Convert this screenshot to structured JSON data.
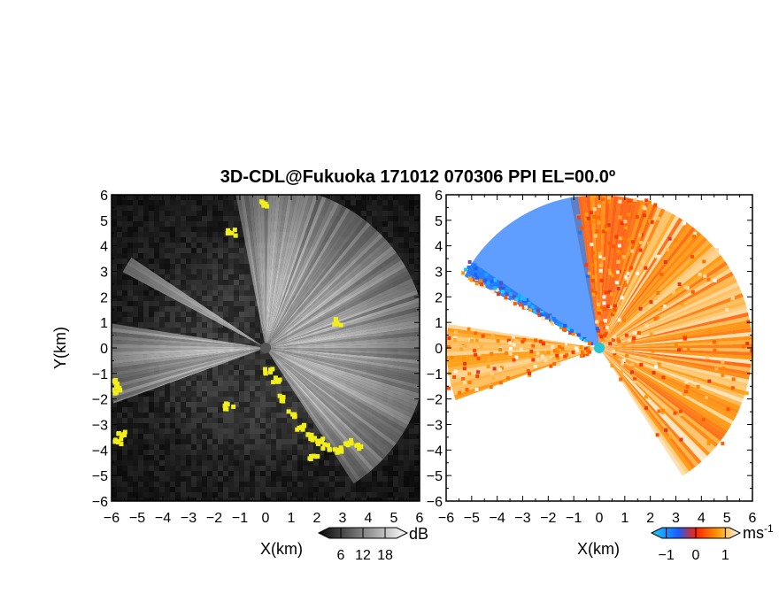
{
  "chart_data": {
    "type": "heatmap",
    "title": "3D-CDL@Fukuoka 171012 070306 PPI EL=00.0º",
    "panels": [
      {
        "id": "reflectivity",
        "xlabel": "X(km)",
        "ylabel": "Y(km)",
        "xlim": [
          -6,
          6
        ],
        "ylim": [
          -6,
          6
        ],
        "xticks": [
          "-6",
          "-5",
          "-4",
          "-3",
          "-2",
          "-1",
          "0",
          "1",
          "2",
          "3",
          "4",
          "5",
          "6"
        ],
        "yticks": [
          "-6",
          "-5",
          "-4",
          "-3",
          "-2",
          "-1",
          "0",
          "1",
          "2",
          "3",
          "4",
          "5",
          "6"
        ],
        "colorbar": {
          "label": "dB",
          "ticks": [
            "6",
            "12",
            "18"
          ],
          "range": [
            0,
            24
          ]
        },
        "colormap": [
          "#050505",
          "#ffffff"
        ],
        "mask_color": "#f2ee1a",
        "background": "#1a1a1a",
        "center_marker": {
          "x": 0,
          "y": 0,
          "color": "#555555"
        }
      },
      {
        "id": "doppler-velocity",
        "xlabel": "X(km)",
        "xlim": [
          -6,
          6
        ],
        "ylim": [
          -6,
          6
        ],
        "xticks": [
          "-6",
          "-5",
          "-4",
          "-3",
          "-2",
          "-1",
          "0",
          "1",
          "2",
          "3",
          "4",
          "5",
          "6"
        ],
        "yticks": [
          "-6",
          "-5",
          "-4",
          "-3",
          "-2",
          "-1",
          "0",
          "1",
          "2",
          "3",
          "4",
          "5",
          "6"
        ],
        "colorbar": {
          "label": "ms",
          "label_superscript": "-1",
          "ticks": [
            "-1",
            "0",
            "1"
          ],
          "range": [
            -1.5,
            1.5
          ]
        },
        "colormap": [
          "#1fd0ff",
          "#1a5cff",
          "#ff3300",
          "#ff9900",
          "#ffffff"
        ],
        "background": "#ffffff",
        "center_marker": {
          "x": 0,
          "y": 0,
          "color": "#22c8d8"
        }
      }
    ],
    "data_sectors_deg": [
      [
        -57,
        68
      ],
      [
        68,
        101
      ],
      [
        146,
        152
      ],
      [
        171,
        200
      ]
    ],
    "range_km": 6.3
  }
}
